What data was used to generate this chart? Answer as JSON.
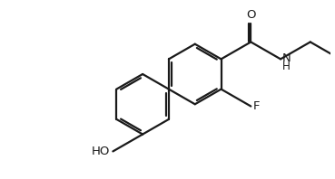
{
  "bg_color": "#ffffff",
  "line_color": "#1a1a1a",
  "lw": 1.6,
  "fs": 9.5,
  "xlim": [
    0,
    9.5
  ],
  "ylim": [
    0,
    5.2
  ],
  "figsize": [
    3.69,
    1.98
  ],
  "dpi": 100
}
